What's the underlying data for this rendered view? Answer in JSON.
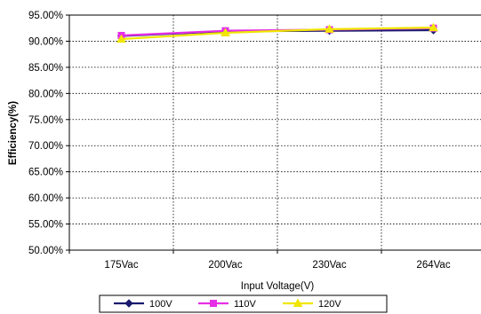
{
  "chart_data": {
    "type": "line",
    "title": "",
    "xlabel": "Input Voltage(V)",
    "ylabel": "Efficiency(%)",
    "categories": [
      "175Vac",
      "200Vac",
      "230Vac",
      "264Vac"
    ],
    "ylim": [
      50,
      95
    ],
    "ytick_step": 5,
    "ytick_labels": [
      "50.00%",
      "55.00%",
      "60.00%",
      "65.00%",
      "70.00%",
      "75.00%",
      "80.00%",
      "85.00%",
      "90.00%",
      "95.00%"
    ],
    "grid": "dotted",
    "legend_position": "bottom",
    "series": [
      {
        "name": "100V",
        "values": [
          91.0,
          91.9,
          92.0,
          92.1
        ],
        "color": "#1a1a6e",
        "marker": "diamond"
      },
      {
        "name": "110V",
        "values": [
          91.1,
          92.0,
          92.2,
          92.5
        ],
        "color": "#e62ee6",
        "marker": "square"
      },
      {
        "name": "120V",
        "values": [
          90.4,
          91.6,
          92.3,
          92.6
        ],
        "color": "#f0e600",
        "marker": "triangle"
      }
    ]
  }
}
